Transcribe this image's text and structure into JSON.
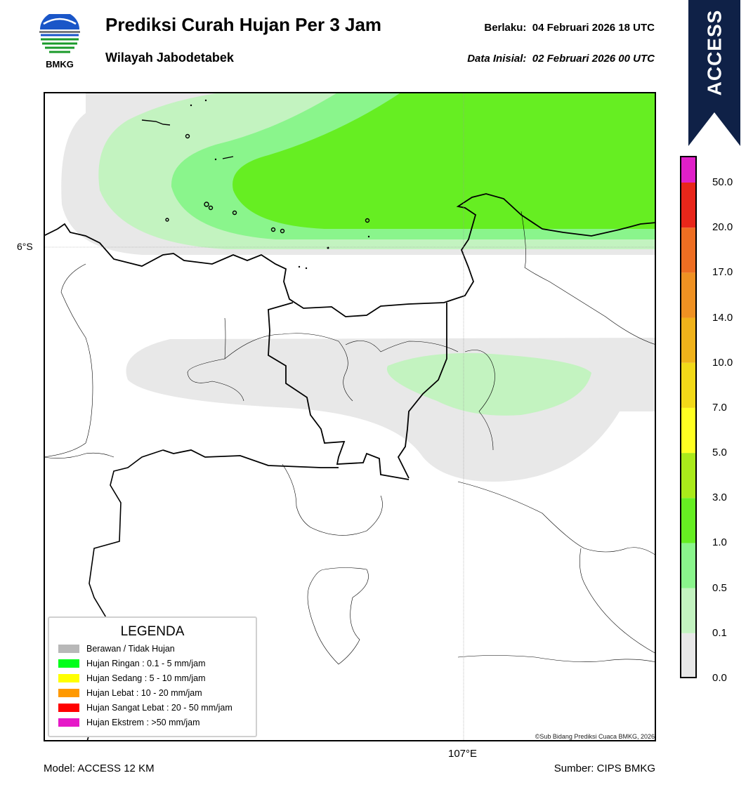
{
  "header": {
    "title": "Prediksi Curah Hujan Per 3 Jam",
    "subtitle": "Wilayah Jabodetabek",
    "valid_label": "Berlaku:",
    "valid_value": "04 Februari 2026 18 UTC",
    "init_label": "Data Inisial:",
    "init_value": "02 Februari 2026 00 UTC"
  },
  "logo": {
    "text": "BMKG",
    "icon": "bmkg-logo-icon"
  },
  "ribbon": {
    "text": "ACCESS",
    "color": "#0f2147"
  },
  "map": {
    "lat_label": "6°S",
    "lon_label": "107°E",
    "copyright": "©Sub Bidang Prediksi Cuaca BMKG, 2026"
  },
  "footer": {
    "model": "Model: ACCESS 12 KM",
    "source": "Sumber: CIPS BMKG"
  },
  "legend": {
    "title": "LEGENDA",
    "items": [
      {
        "label": "Berawan / Tidak Hujan",
        "color": "#b8b8b8"
      },
      {
        "label": "Hujan Ringan : 0.1 - 5 mm/jam",
        "color": "#00ff1a"
      },
      {
        "label": "Hujan Sedang : 5 - 10 mm/jam",
        "color": "#ffff00"
      },
      {
        "label": "Hujan Lebat : 10 - 20 mm/jam",
        "color": "#ff9900"
      },
      {
        "label": "Hujan Sangat Lebat : 20 - 50 mm/jam",
        "color": "#ff0000"
      },
      {
        "label": "Hujan Ekstrem : >50 mm/jam",
        "color": "#e619c8"
      }
    ]
  },
  "colorbar": {
    "labels": [
      "0.0",
      "0.1",
      "0.5",
      "1.0",
      "3.0",
      "5.0",
      "7.0",
      "10.0",
      "14.0",
      "17.0",
      "20.0",
      "50.0"
    ],
    "colors": [
      "#e8e8e8",
      "#c3f3c0",
      "#8af58c",
      "#66ee22",
      "#aaea1a",
      "#ffff22",
      "#f2d918",
      "#f0b21a",
      "#ef9122",
      "#ee6e22",
      "#e8261a",
      "#e020c8"
    ]
  }
}
